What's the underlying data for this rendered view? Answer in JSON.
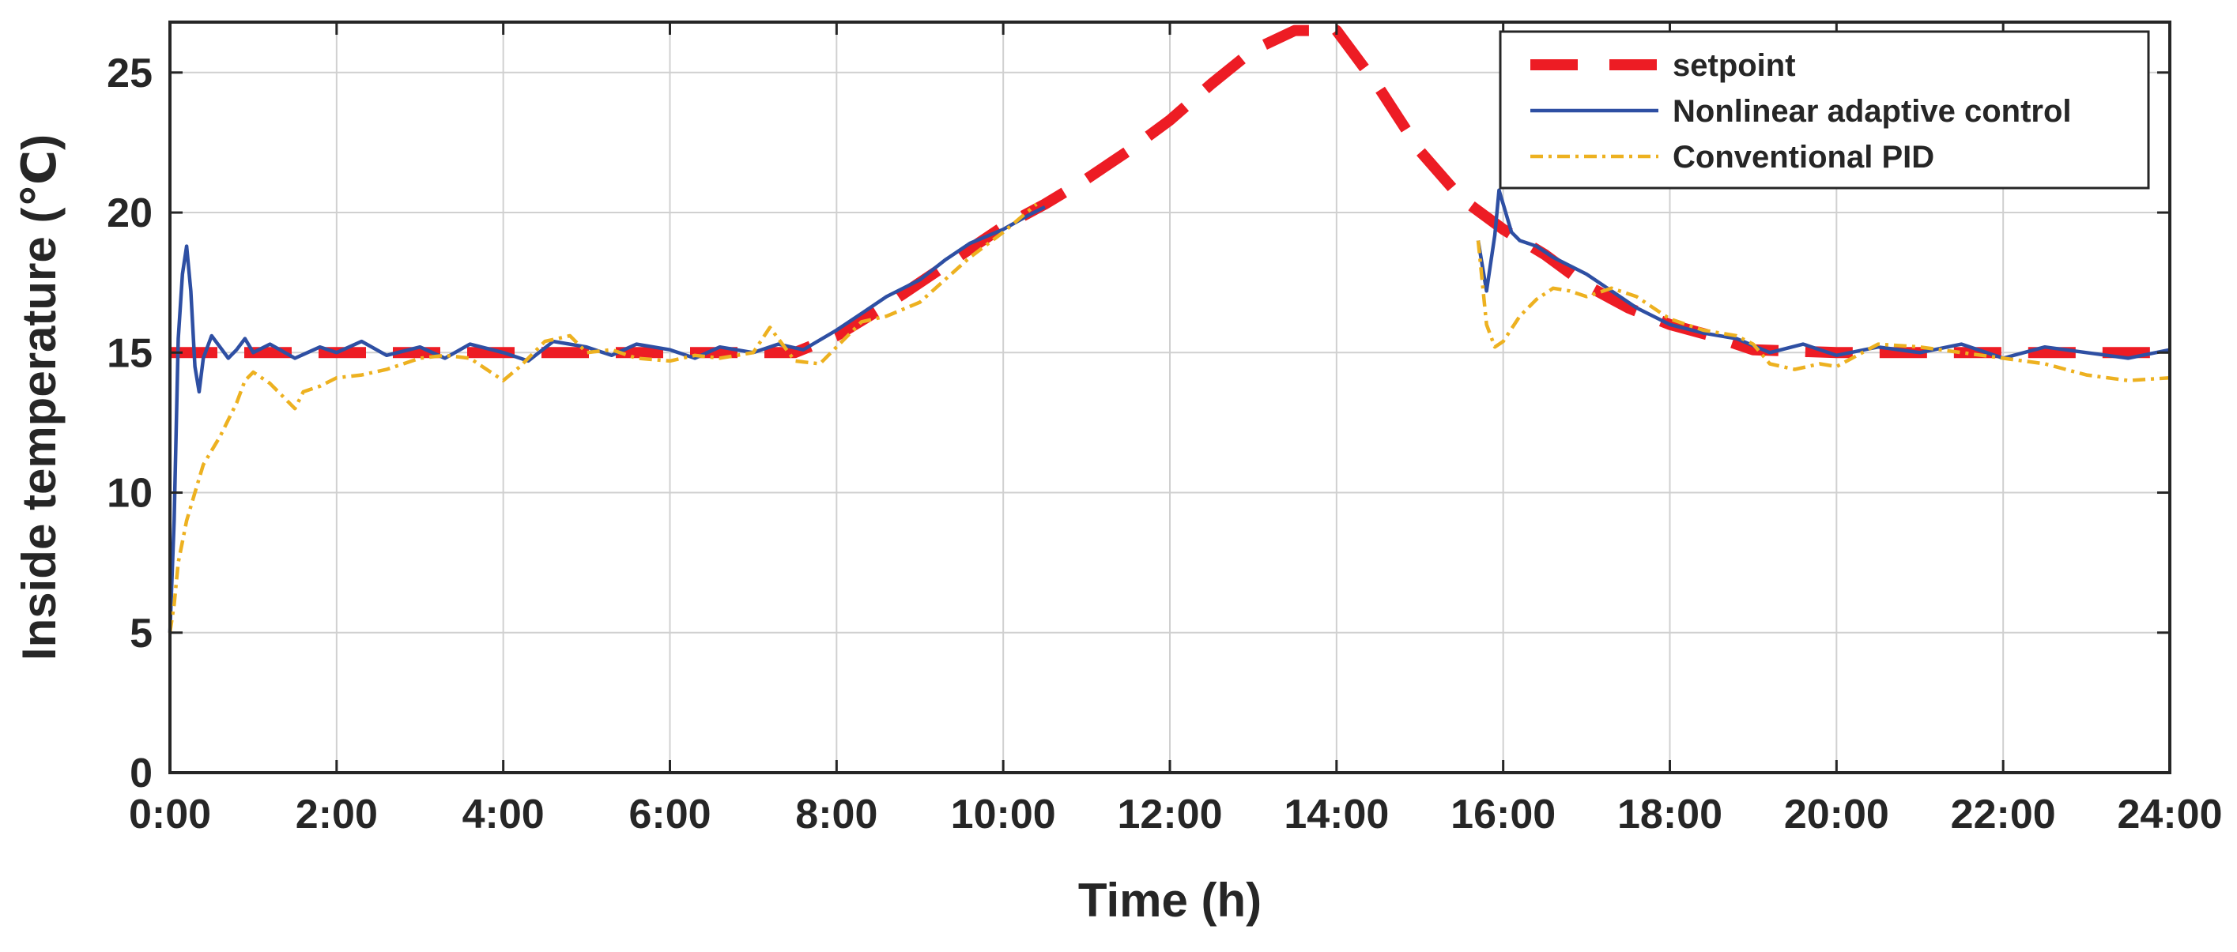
{
  "chart_data": {
    "type": "line",
    "title": "",
    "xlabel": "Time (h)",
    "ylabel": "Inside temperature (℃)",
    "xlim": [
      0,
      24
    ],
    "ylim": [
      0,
      26.8
    ],
    "grid": true,
    "legend_position": "top-right",
    "x_ticks": [
      {
        "value": 0,
        "label": "0:00"
      },
      {
        "value": 2,
        "label": "2:00"
      },
      {
        "value": 4,
        "label": "4:00"
      },
      {
        "value": 6,
        "label": "6:00"
      },
      {
        "value": 8,
        "label": "8:00"
      },
      {
        "value": 10,
        "label": "10:00"
      },
      {
        "value": 12,
        "label": "12:00"
      },
      {
        "value": 14,
        "label": "14:00"
      },
      {
        "value": 16,
        "label": "16:00"
      },
      {
        "value": 18,
        "label": "18:00"
      },
      {
        "value": 20,
        "label": "20:00"
      },
      {
        "value": 22,
        "label": "22:00"
      },
      {
        "value": 24,
        "label": "24:00"
      }
    ],
    "y_ticks": [
      {
        "value": 0,
        "label": "0"
      },
      {
        "value": 5,
        "label": "5"
      },
      {
        "value": 10,
        "label": "10"
      },
      {
        "value": 15,
        "label": "15"
      },
      {
        "value": 20,
        "label": "20"
      },
      {
        "value": 25,
        "label": "25"
      }
    ],
    "series": [
      {
        "name": "setpoint",
        "color": "#ED1C24",
        "style": "dashed",
        "x": [
          0,
          7.5,
          8,
          8.5,
          9,
          9.5,
          10,
          10.5,
          11,
          11.5,
          12,
          12.5,
          13,
          13.5,
          14,
          14.5,
          15,
          15.5,
          16,
          16.5,
          17,
          17.5,
          18,
          18.5,
          19,
          20,
          21,
          22,
          23,
          24
        ],
        "y": [
          15,
          15,
          15.6,
          16.5,
          17.5,
          18.5,
          19.5,
          20.3,
          21.2,
          22.2,
          23.3,
          24.6,
          25.8,
          26.5,
          26.5,
          24.5,
          22.2,
          20.5,
          19.4,
          18.5,
          17.4,
          16.6,
          16.0,
          15.6,
          15.1,
          15,
          15,
          15,
          15,
          15
        ]
      },
      {
        "name": "Nonlinear adaptive control",
        "color": "#2E4FA3",
        "style": "solid",
        "x": [
          0,
          0.05,
          0.1,
          0.15,
          0.2,
          0.25,
          0.3,
          0.35,
          0.4,
          0.5,
          0.6,
          0.7,
          0.8,
          0.9,
          1.0,
          1.2,
          1.5,
          1.8,
          2.0,
          2.3,
          2.6,
          3.0,
          3.3,
          3.6,
          4.0,
          4.3,
          4.6,
          5.0,
          5.3,
          5.6,
          6.0,
          6.3,
          6.6,
          7.0,
          7.3,
          7.6,
          8.0,
          8.3,
          8.6,
          9.0,
          9.3,
          9.6,
          10.0,
          10.3,
          10.5
        ],
        "y": [
          5,
          9,
          15.5,
          17.8,
          18.8,
          17.2,
          14.5,
          13.6,
          14.8,
          15.6,
          15.2,
          14.8,
          15.1,
          15.5,
          15.0,
          15.3,
          14.8,
          15.2,
          15.0,
          15.4,
          14.9,
          15.2,
          14.8,
          15.3,
          15.0,
          14.7,
          15.4,
          15.2,
          14.9,
          15.3,
          15.1,
          14.8,
          15.2,
          15.0,
          15.3,
          15.1,
          15.8,
          16.4,
          17.0,
          17.6,
          18.3,
          18.9,
          19.4,
          19.9,
          20.2
        ]
      },
      {
        "name": "Nonlinear adaptive control",
        "color": "#2E4FA3",
        "style": "solid",
        "x": [
          15.7,
          15.8,
          15.9,
          15.95,
          16.0,
          16.1,
          16.2,
          16.4,
          16.6,
          16.8,
          17.0,
          17.3,
          17.6,
          18.0,
          18.4,
          18.8,
          19.2,
          19.6,
          20.0,
          20.5,
          21.0,
          21.5,
          22.0,
          22.5,
          23.0,
          23.5,
          24.0
        ],
        "y": [
          19.0,
          17.2,
          19.2,
          20.8,
          20.3,
          19.3,
          19.0,
          18.8,
          18.4,
          18.1,
          17.8,
          17.2,
          16.6,
          16.0,
          15.7,
          15.5,
          15.0,
          15.3,
          14.9,
          15.2,
          15.0,
          15.3,
          14.8,
          15.2,
          15.0,
          14.8,
          15.1
        ]
      },
      {
        "name": "Conventional PID",
        "color": "#EDB120",
        "style": "dash-dot",
        "x": [
          0,
          0.05,
          0.1,
          0.2,
          0.3,
          0.4,
          0.5,
          0.6,
          0.7,
          0.8,
          0.9,
          1.0,
          1.1,
          1.2,
          1.4,
          1.5,
          1.6,
          1.8,
          2.0,
          2.3,
          2.6,
          3.0,
          3.3,
          3.6,
          4.0,
          4.2,
          4.5,
          4.8,
          5.0,
          5.3,
          5.6,
          6.0,
          6.3,
          6.6,
          7.0,
          7.2,
          7.5,
          7.8,
          8.0,
          8.3,
          8.6,
          9.0,
          9.3,
          9.6,
          10.0,
          10.2,
          10.4
        ],
        "y": [
          5,
          6,
          7.5,
          9,
          10.0,
          11.0,
          11.5,
          12.0,
          12.6,
          13.2,
          14.0,
          14.3,
          14.1,
          13.9,
          13.3,
          13.0,
          13.6,
          13.8,
          14.1,
          14.2,
          14.4,
          14.8,
          14.9,
          14.8,
          14.0,
          14.5,
          15.4,
          15.6,
          15.0,
          15.1,
          14.8,
          14.7,
          14.9,
          14.8,
          15.0,
          15.9,
          14.7,
          14.6,
          15.2,
          16.1,
          16.3,
          16.8,
          17.6,
          18.4,
          19.3,
          19.8,
          20.3
        ]
      },
      {
        "name": "Conventional PID",
        "color": "#EDB120",
        "style": "dash-dot",
        "x": [
          15.7,
          15.8,
          15.9,
          16.0,
          16.2,
          16.4,
          16.6,
          16.8,
          17.0,
          17.3,
          17.6,
          18.0,
          18.4,
          18.8,
          19.0,
          19.2,
          19.5,
          19.8,
          20.0,
          20.5,
          21.0,
          21.5,
          22.0,
          22.5,
          23.0,
          23.5,
          24.0
        ],
        "y": [
          19.0,
          16.0,
          15.2,
          15.4,
          16.3,
          16.9,
          17.3,
          17.2,
          17.0,
          17.3,
          17.0,
          16.2,
          15.8,
          15.6,
          15.3,
          14.6,
          14.4,
          14.6,
          14.5,
          15.3,
          15.2,
          15.0,
          14.8,
          14.6,
          14.2,
          14.0,
          14.1
        ]
      }
    ],
    "legend": [
      {
        "label": "setpoint",
        "color": "#ED1C24",
        "style": "dashed"
      },
      {
        "label": "Nonlinear adaptive control",
        "color": "#2E4FA3",
        "style": "solid"
      },
      {
        "label": "Conventional PID",
        "color": "#EDB120",
        "style": "dash-dot"
      }
    ]
  }
}
